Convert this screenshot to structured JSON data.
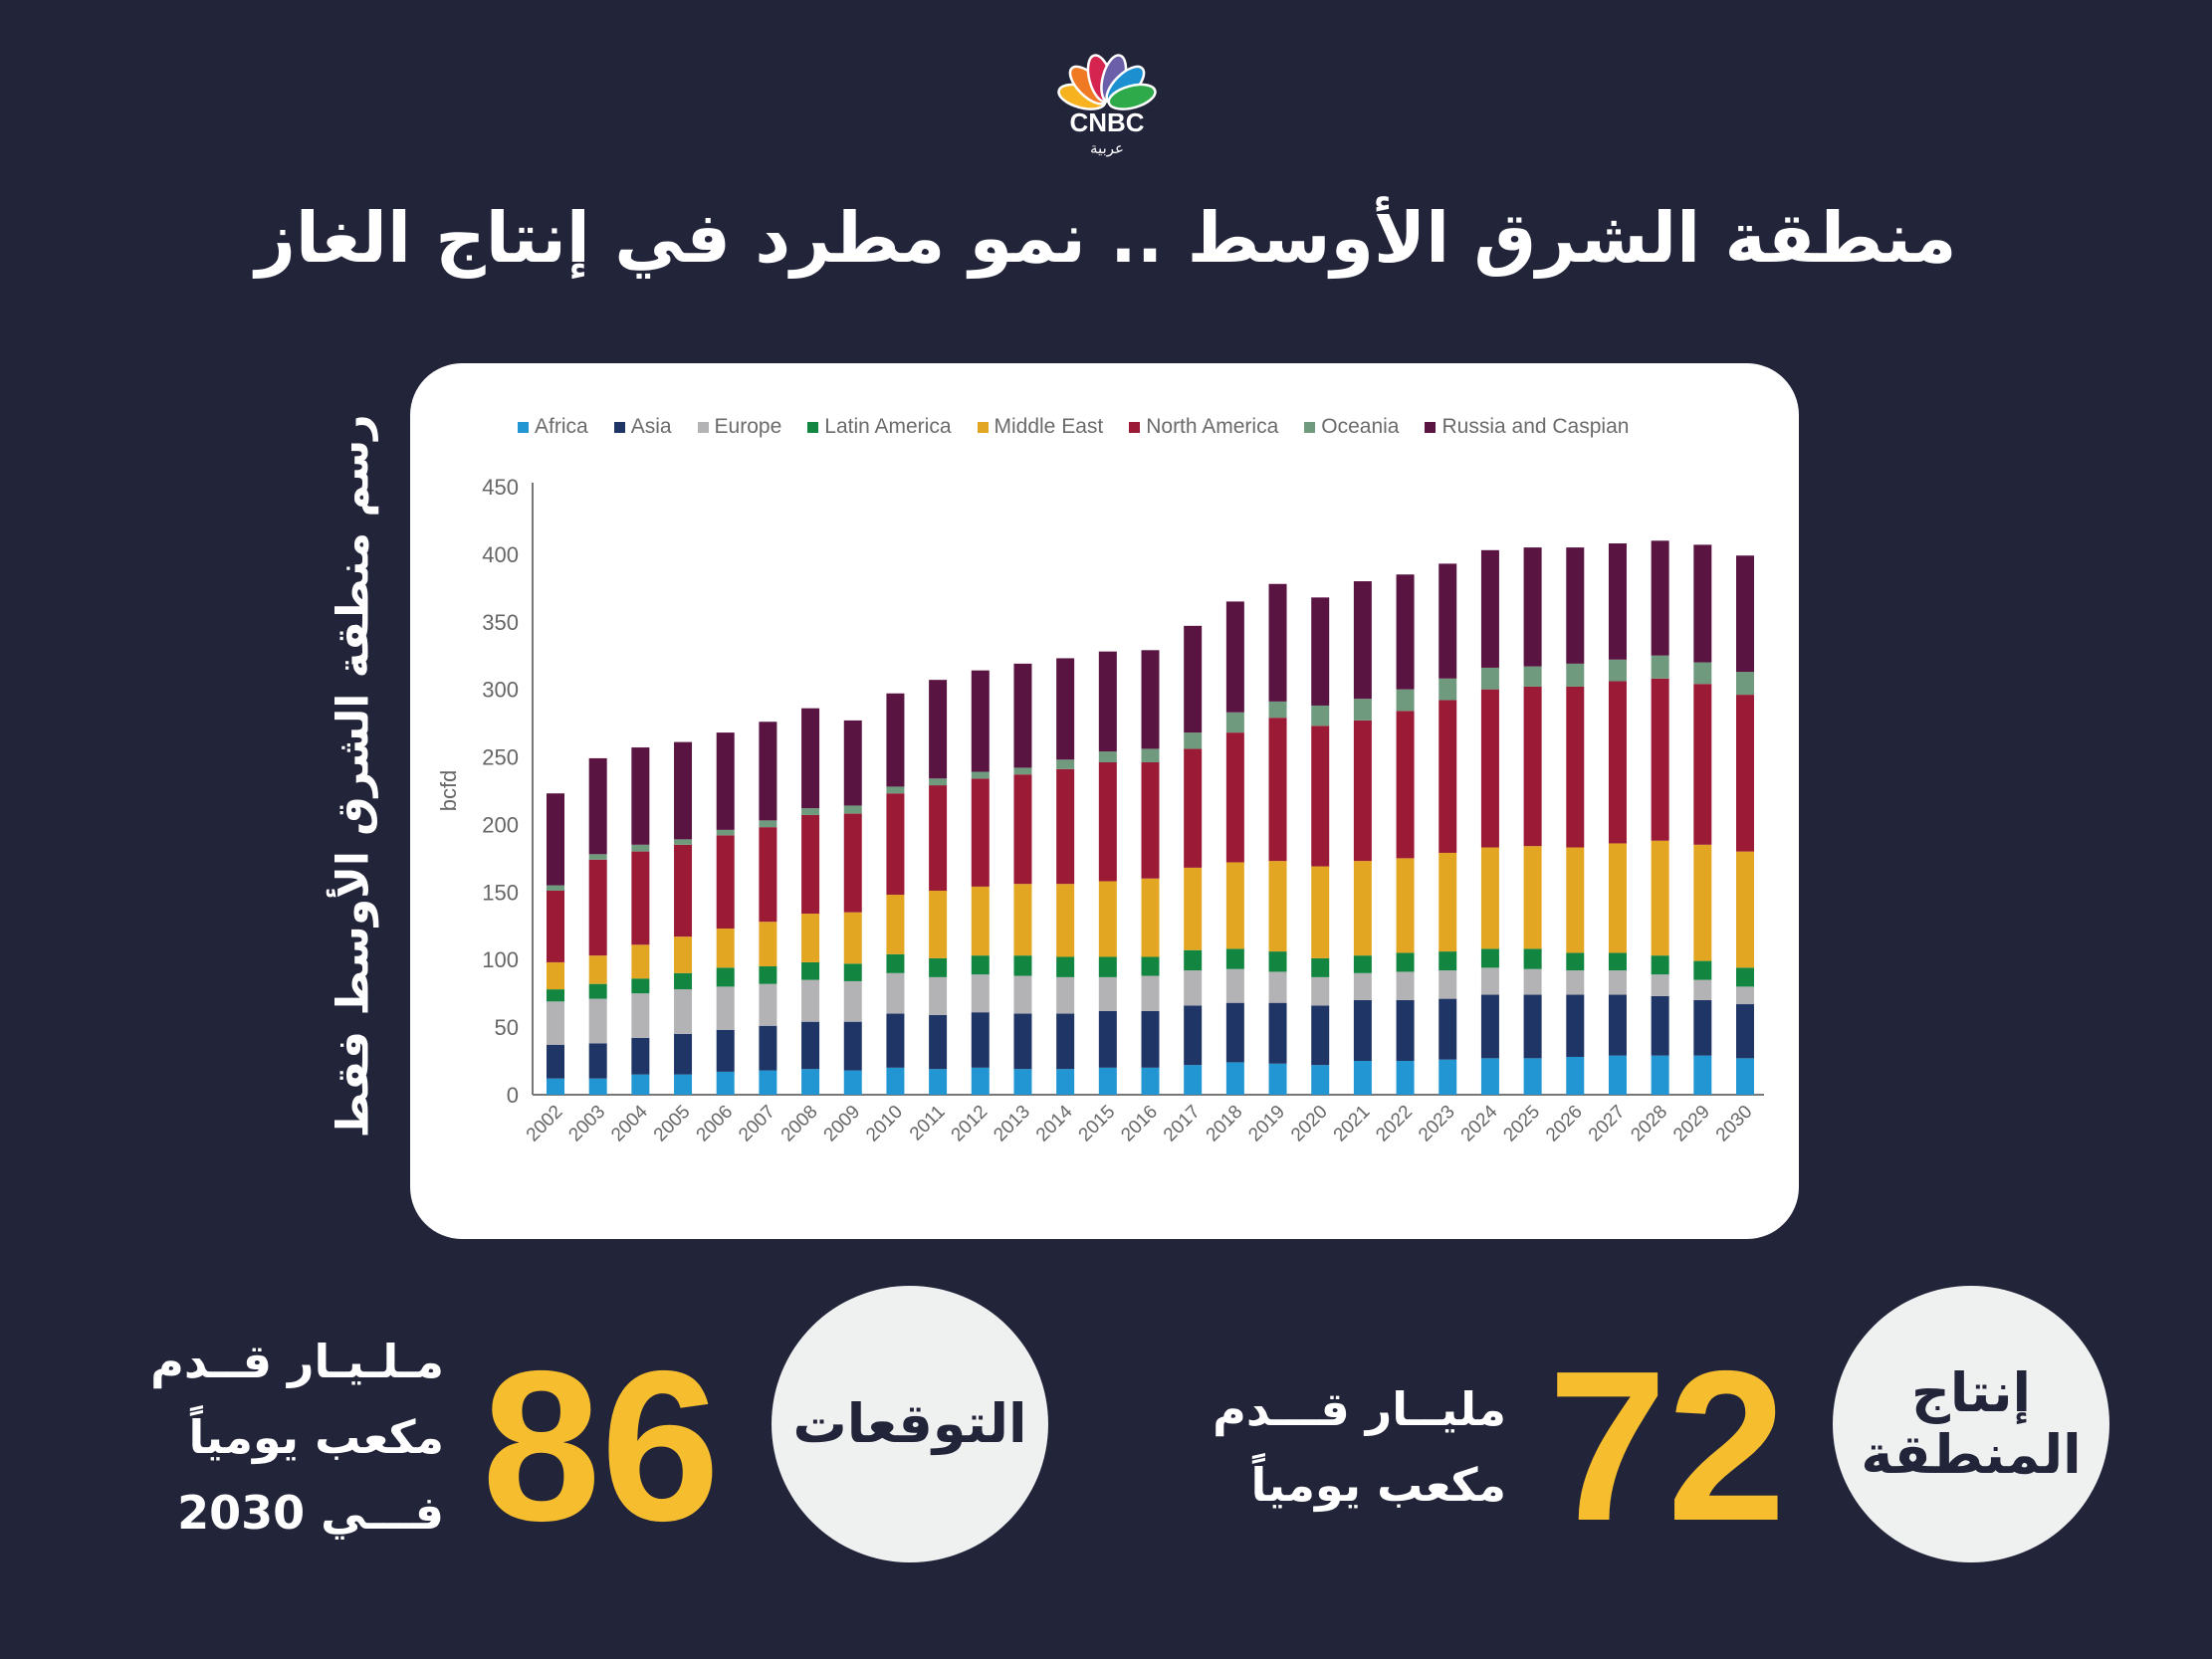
{
  "logo": {
    "text": "CNBC",
    "subtext": "عربية",
    "colors": [
      "#f7b21f",
      "#f07a24",
      "#d5244f",
      "#6a5fa8",
      "#1c8fd1",
      "#2faa4a"
    ]
  },
  "title": "منطقة الشرق الأوسط .. نمو مطرد في إنتاج الغاز",
  "side_label": "رسم منطقة الشرق الأوسط فقط",
  "stats": {
    "production": {
      "label_line1": "إنتاج",
      "label_line2": "المنطقة",
      "value": "72",
      "unit_line1": "مليــار قـــدم",
      "unit_line2": "مكعب يومياً"
    },
    "forecast": {
      "label": "التوقعات",
      "value": "86",
      "unit_line1": "مـلـيـار قــدم",
      "unit_line2": "مكعب يومياً",
      "unit_line3": "فـــي  2030"
    }
  },
  "colors": {
    "background": "#22243a",
    "accent": "#f6bd2e",
    "circle": "#eff0f0"
  },
  "chart_data": {
    "type": "bar",
    "stacked": true,
    "ylabel": "bcfd",
    "xlabel": "",
    "ylim": [
      0,
      450
    ],
    "yticks": [
      0,
      50,
      100,
      150,
      200,
      250,
      300,
      350,
      400,
      450
    ],
    "grid": false,
    "legend_position": "top",
    "categories": [
      "2002",
      "2003",
      "2004",
      "2005",
      "2006",
      "2007",
      "2008",
      "2009",
      "2010",
      "2011",
      "2012",
      "2013",
      "2014",
      "2015",
      "2016",
      "2017",
      "2018",
      "2019",
      "2020",
      "2021",
      "2022",
      "2023",
      "2024",
      "2025",
      "2026",
      "2027",
      "2028",
      "2029",
      "2030"
    ],
    "series": [
      {
        "name": "Africa",
        "color": "#2196d3",
        "values": [
          12,
          12,
          15,
          15,
          17,
          18,
          19,
          18,
          20,
          19,
          20,
          19,
          19,
          20,
          20,
          22,
          24,
          23,
          22,
          25,
          25,
          26,
          27,
          27,
          28,
          29,
          29,
          29,
          27
        ]
      },
      {
        "name": "Asia",
        "color": "#1f3566",
        "values": [
          25,
          26,
          27,
          30,
          31,
          33,
          35,
          36,
          40,
          40,
          41,
          41,
          41,
          42,
          42,
          44,
          44,
          45,
          44,
          45,
          45,
          45,
          47,
          47,
          46,
          45,
          44,
          41,
          40
        ]
      },
      {
        "name": "Europe",
        "color": "#b3b3b6",
        "values": [
          32,
          33,
          33,
          33,
          32,
          31,
          31,
          30,
          30,
          28,
          28,
          28,
          27,
          25,
          26,
          26,
          25,
          23,
          21,
          20,
          21,
          21,
          20,
          19,
          18,
          18,
          16,
          15,
          13
        ]
      },
      {
        "name": "Latin America",
        "color": "#128540",
        "values": [
          9,
          11,
          11,
          12,
          14,
          13,
          13,
          13,
          14,
          14,
          14,
          15,
          15,
          15,
          14,
          15,
          15,
          15,
          14,
          13,
          14,
          14,
          14,
          15,
          13,
          13,
          14,
          14,
          14
        ]
      },
      {
        "name": "Middle East",
        "color": "#e3a623",
        "values": [
          20,
          21,
          25,
          27,
          29,
          33,
          36,
          38,
          44,
          50,
          51,
          53,
          54,
          56,
          58,
          61,
          64,
          67,
          68,
          70,
          70,
          73,
          75,
          76,
          78,
          81,
          85,
          86,
          86
        ]
      },
      {
        "name": "North America",
        "color": "#9b1b36",
        "values": [
          53,
          71,
          69,
          68,
          69,
          70,
          73,
          73,
          75,
          78,
          80,
          81,
          85,
          88,
          86,
          88,
          96,
          106,
          104,
          104,
          109,
          113,
          117,
          118,
          119,
          120,
          120,
          119,
          116
        ]
      },
      {
        "name": "Oceania",
        "color": "#6f9a7e",
        "values": [
          4,
          4,
          5,
          4,
          4,
          5,
          5,
          6,
          5,
          5,
          5,
          5,
          7,
          8,
          10,
          12,
          15,
          12,
          15,
          16,
          16,
          16,
          16,
          15,
          17,
          16,
          17,
          16,
          17
        ]
      },
      {
        "name": "Russia and Caspian",
        "color": "#5a1442",
        "values": [
          68,
          71,
          72,
          72,
          72,
          73,
          74,
          63,
          69,
          73,
          75,
          77,
          75,
          74,
          73,
          79,
          82,
          87,
          80,
          87,
          85,
          85,
          87,
          88,
          86,
          86,
          85,
          87,
          86
        ]
      }
    ]
  }
}
